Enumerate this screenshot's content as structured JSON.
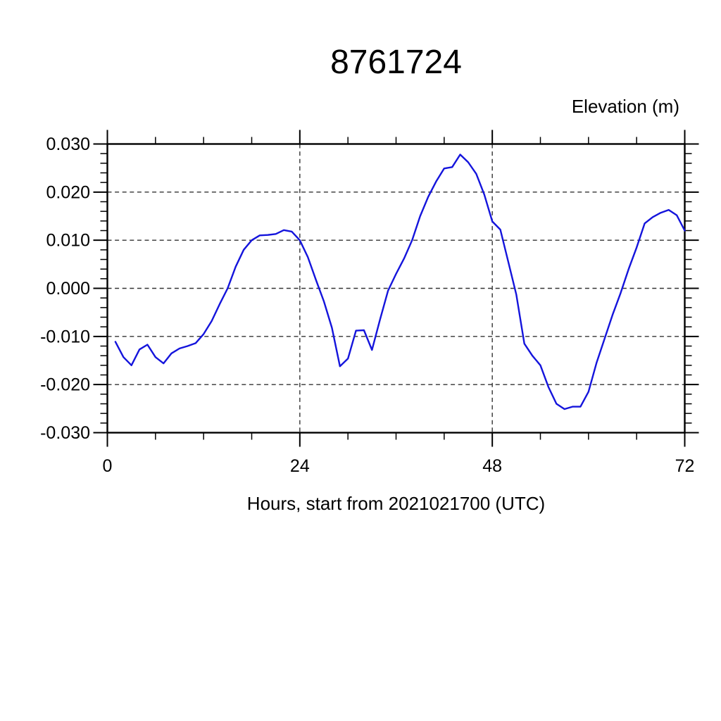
{
  "colors": {
    "line": "#1414dc",
    "grid": "#333333",
    "axis": "#000000",
    "background": "#ffffff",
    "text": "#000000"
  },
  "chart_data": {
    "type": "line",
    "title": "8761724",
    "xlabel": "Hours, start from 2021021700 (UTC)",
    "ylabel": "Elevation (m)",
    "xlim": [
      0,
      72
    ],
    "ylim": [
      -0.03,
      0.03
    ],
    "grid": true,
    "legend": "none",
    "x_major_ticks": [
      0,
      24,
      48,
      72
    ],
    "x_tick_labels": [
      "0",
      "24",
      "48",
      "72"
    ],
    "x_minor_step": 6,
    "y_major_ticks": [
      0.03,
      0.02,
      0.01,
      0.0,
      -0.01,
      -0.02,
      -0.03
    ],
    "y_tick_labels": [
      "0.030",
      "0.020",
      "0.010",
      "0.000",
      "-0.010",
      "-0.020",
      "-0.030"
    ],
    "y_minor_step": 0.002,
    "series": [
      {
        "name": "elevation",
        "x": [
          1,
          2,
          3,
          4,
          5,
          6,
          7,
          8,
          9,
          10,
          11,
          12,
          13,
          14,
          15,
          16,
          17,
          18,
          19,
          20,
          21,
          22,
          23,
          24,
          25,
          26,
          27,
          28,
          29,
          30,
          31,
          32,
          33,
          34,
          35,
          36,
          37,
          38,
          39,
          40,
          41,
          42,
          43,
          44,
          45,
          46,
          47,
          48,
          49,
          50,
          51,
          52,
          53,
          54,
          55,
          56,
          57,
          58,
          59,
          60,
          61,
          62,
          63,
          64,
          65,
          66,
          67,
          68,
          69,
          70,
          71,
          72
        ],
        "y": [
          -0.0111,
          -0.0143,
          -0.016,
          -0.0127,
          -0.0117,
          -0.0143,
          -0.0156,
          -0.0135,
          -0.0125,
          -0.012,
          -0.0114,
          -0.0095,
          -0.0068,
          -0.0033,
          0.0,
          0.0045,
          0.008,
          0.01,
          0.011,
          0.0111,
          0.0113,
          0.0121,
          0.0118,
          0.01,
          0.0065,
          0.0018,
          -0.0027,
          -0.0082,
          -0.0162,
          -0.0146,
          -0.0088,
          -0.0087,
          -0.0128,
          -0.0065,
          -0.0005,
          0.003,
          0.0062,
          0.01,
          0.015,
          0.019,
          0.0222,
          0.0249,
          0.0252,
          0.0278,
          0.0262,
          0.0238,
          0.0195,
          0.0139,
          0.0122,
          0.0055,
          -0.0013,
          -0.0115,
          -0.014,
          -0.016,
          -0.0205,
          -0.024,
          -0.0251,
          -0.0246,
          -0.0246,
          -0.0215,
          -0.0155,
          -0.0105,
          -0.0055,
          -0.001,
          0.004,
          0.0085,
          0.0135,
          0.0148,
          0.0157,
          0.0163,
          0.0152,
          0.012
        ]
      }
    ]
  }
}
